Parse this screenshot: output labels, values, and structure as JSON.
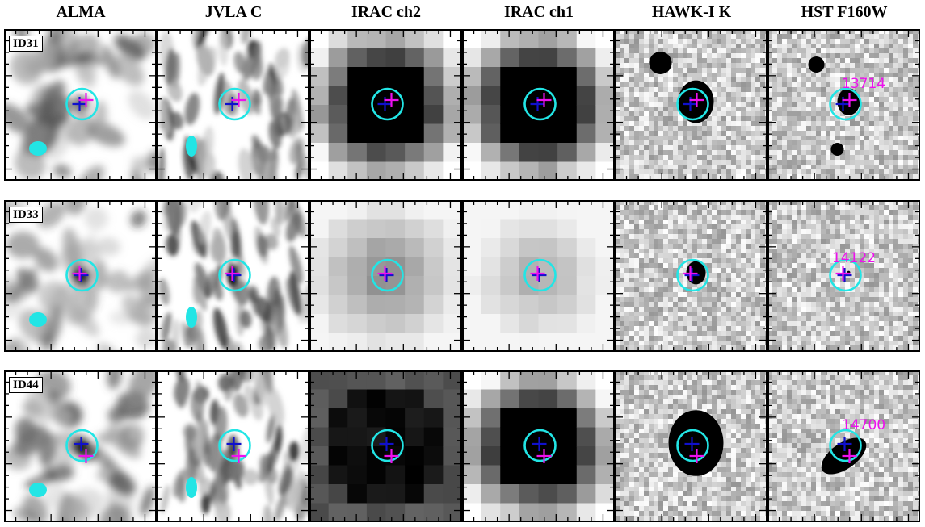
{
  "columns": [
    "ALMA",
    "JVLA C",
    "IRAC ch2",
    "IRAC ch1",
    "HAWK-I K",
    "HST F160W"
  ],
  "rows": [
    {
      "id": "ID31",
      "hst_source": "13714"
    },
    {
      "id": "ID33",
      "hst_source": "14122"
    },
    {
      "id": "ID44",
      "hst_source": "14700"
    }
  ],
  "colors": {
    "aperture_circle": "#22e5e5",
    "beam_ellipse": "#22e5e5",
    "cross_blue": "#1010cc",
    "cross_magenta": "#ee10ee",
    "source_label": "#ee10ee",
    "frame": "#000000"
  }
}
